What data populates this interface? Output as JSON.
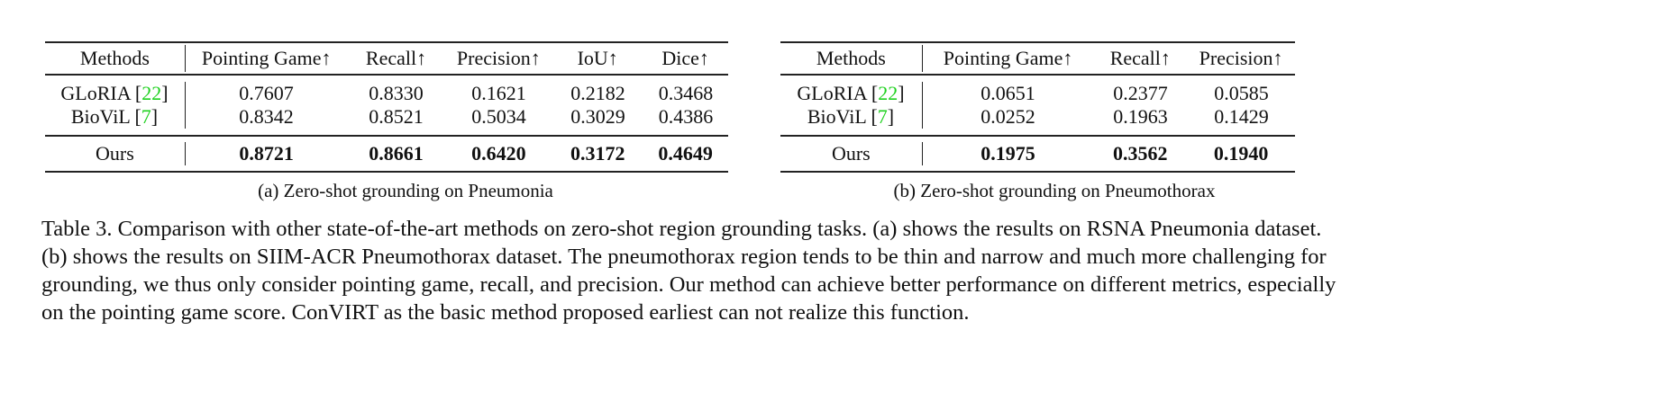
{
  "table_a": {
    "headers": [
      "Methods",
      "Pointing Game↑",
      "Recall↑",
      "Precision↑",
      "IoU↑",
      "Dice↑"
    ],
    "rows": [
      {
        "method": "GLoRIA",
        "cite": "22",
        "values": [
          "0.7607",
          "0.8330",
          "0.1621",
          "0.2182",
          "0.3468"
        ]
      },
      {
        "method": "BioViL",
        "cite": "7",
        "values": [
          "0.8342",
          "0.8521",
          "0.5034",
          "0.3029",
          "0.4386"
        ]
      }
    ],
    "ours": {
      "method": "Ours",
      "values": [
        "0.8721",
        "0.8661",
        "0.6420",
        "0.3172",
        "0.4649"
      ]
    },
    "caption": "(a) Zero-shot grounding on Pneumonia"
  },
  "table_b": {
    "headers": [
      "Methods",
      "Pointing Game↑",
      "Recall↑",
      "Precision↑"
    ],
    "rows": [
      {
        "method": "GLoRIA",
        "cite": "22",
        "values": [
          "0.0651",
          "0.2377",
          "0.0585"
        ]
      },
      {
        "method": "BioViL",
        "cite": "7",
        "values": [
          "0.0252",
          "0.1963",
          "0.1429"
        ]
      }
    ],
    "ours": {
      "method": "Ours",
      "values": [
        "0.1975",
        "0.3562",
        "0.1940"
      ]
    },
    "caption": "(b) Zero-shot grounding on Pneumothorax"
  },
  "caption": "Table 3. Comparison with other state-of-the-art methods on zero-shot region grounding tasks. (a) shows the results on RSNA Pneumonia dataset. (b) shows the results on SIIM-ACR Pneumothorax dataset. The pneumothorax region tends to be thin and narrow and much more challenging for grounding, we thus only consider pointing game, recall, and precision. Our method can achieve better performance on different metrics, especially on the pointing game score. ConVIRT as the basic method proposed earliest can not realize this function."
}
